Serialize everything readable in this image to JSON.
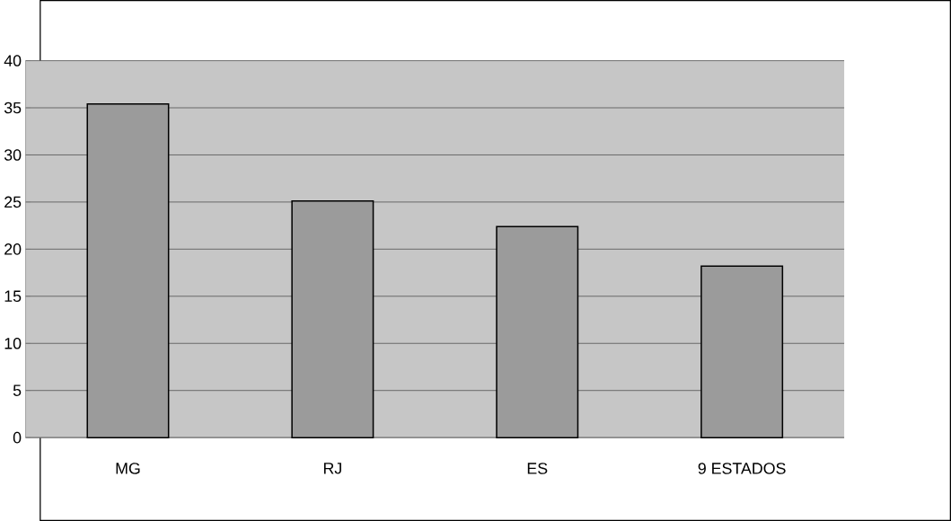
{
  "chart_data": {
    "type": "bar",
    "categories": [
      "MG",
      "RJ",
      "ES",
      "9 ESTADOS"
    ],
    "values": [
      35.4,
      25.1,
      22.4,
      18.2
    ],
    "color": "#9b9b9b",
    "ylim": [
      0,
      40
    ],
    "yticks": [
      0,
      5,
      10,
      15,
      20,
      25,
      30,
      35,
      40
    ],
    "grid": "y"
  }
}
